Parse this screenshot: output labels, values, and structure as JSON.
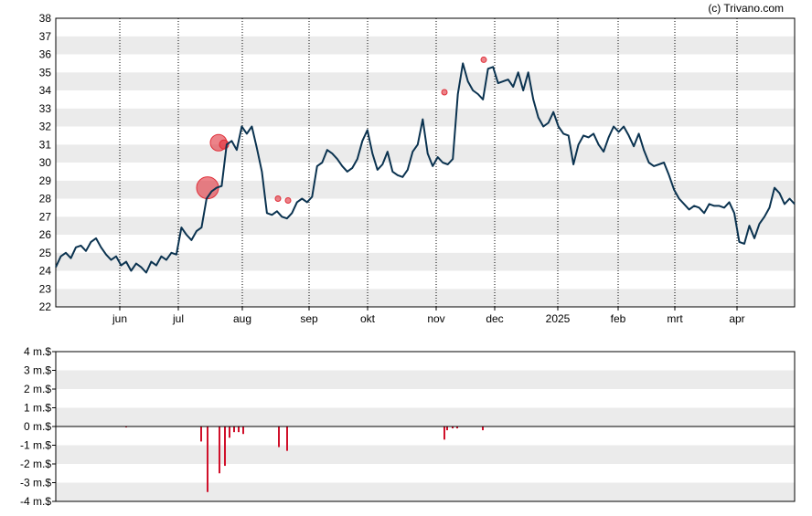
{
  "copyright": "(c) Trivano.com",
  "chart_data": [
    {
      "type": "line",
      "title": "",
      "xlabel": "",
      "ylabel": "",
      "ylim": [
        22,
        38
      ],
      "grid": true,
      "y_ticks": [
        "22",
        "23",
        "24",
        "25",
        "26",
        "27",
        "28",
        "29",
        "30",
        "31",
        "32",
        "33",
        "34",
        "35",
        "36",
        "37",
        "38"
      ],
      "x_ticks": [
        "jun",
        "jul",
        "aug",
        "sep",
        "okt",
        "nov",
        "dec",
        "2025",
        "feb",
        "mrt",
        "apr"
      ],
      "line_color": "#0b3350",
      "marker_color": "#e0303a",
      "series": [
        {
          "values": [
            24.2,
            24.8,
            25.0,
            24.7,
            25.3,
            25.4,
            25.1,
            25.6,
            25.8,
            25.3,
            24.9,
            24.6,
            24.8,
            24.3,
            24.5,
            24.0,
            24.4,
            24.2,
            23.9,
            24.5,
            24.3,
            24.8,
            24.6,
            25.0,
            24.9,
            26.4,
            26.0,
            25.7,
            26.2,
            26.4,
            28.0,
            28.4,
            28.6,
            28.7,
            31.0,
            31.2,
            30.7,
            32.0,
            31.6,
            32.0,
            30.8,
            29.5,
            27.2,
            27.1,
            27.3,
            27.0,
            26.9,
            27.2,
            27.8,
            28.0,
            27.8,
            28.1,
            29.8,
            30.0,
            30.7,
            30.5,
            30.2,
            29.8,
            29.5,
            29.7,
            30.2,
            31.2,
            31.8,
            30.5,
            29.6,
            29.9,
            30.6,
            29.5,
            29.3,
            29.2,
            29.6,
            30.6,
            31.0,
            32.4,
            30.5,
            29.8,
            30.3,
            30.0,
            29.9,
            30.2,
            33.8,
            35.5,
            34.5,
            34.0,
            33.8,
            33.5,
            35.2,
            35.3,
            34.4,
            34.5,
            34.6,
            34.2,
            35.0,
            34.0,
            35.0,
            33.5,
            32.5,
            32.0,
            32.2,
            32.8,
            32.0,
            31.6,
            31.5,
            29.9,
            31.0,
            31.5,
            31.4,
            31.6,
            31.0,
            30.6,
            31.4,
            32.0,
            31.7,
            32.0,
            31.5,
            30.9,
            31.6,
            30.7,
            30.0,
            29.8,
            29.9,
            30.0,
            29.3,
            28.5,
            28.0,
            27.7,
            27.4,
            27.6,
            27.5,
            27.2,
            27.7,
            27.6,
            27.6,
            27.5,
            27.8,
            27.2,
            25.6,
            25.5,
            26.5,
            25.8,
            26.6,
            27.0,
            27.5,
            28.6,
            28.3,
            27.7,
            28.0,
            27.7
          ]
        }
      ],
      "markers": [
        {
          "value": 28.6,
          "size": "large"
        },
        {
          "value": 31.1,
          "size": "medium"
        },
        {
          "value": 31.0,
          "size": "small"
        },
        {
          "value": 28.0,
          "size": "tiny"
        },
        {
          "value": 27.9,
          "size": "tiny"
        },
        {
          "value": 33.9,
          "size": "tiny"
        },
        {
          "value": 35.7,
          "size": "tiny"
        }
      ]
    },
    {
      "type": "bar",
      "title": "",
      "xlabel": "",
      "ylabel": "",
      "ylim": [
        -4,
        4
      ],
      "grid": true,
      "y_ticks": [
        "-4 m.$",
        "-3 m.$",
        "-2 m.$",
        "-1 m.$",
        "0 m.$",
        "1 m.$",
        "2 m.$",
        "3 m.$",
        "4 m.$"
      ],
      "bar_color": "#d0102a",
      "values": [
        -0.05,
        -0.8,
        -3.5,
        -2.5,
        -2.1,
        -0.6,
        -0.3,
        -0.3,
        -0.4,
        -1.1,
        -1.3,
        -0.7,
        -0.2,
        -0.1,
        -0.1,
        -0.2
      ]
    }
  ]
}
